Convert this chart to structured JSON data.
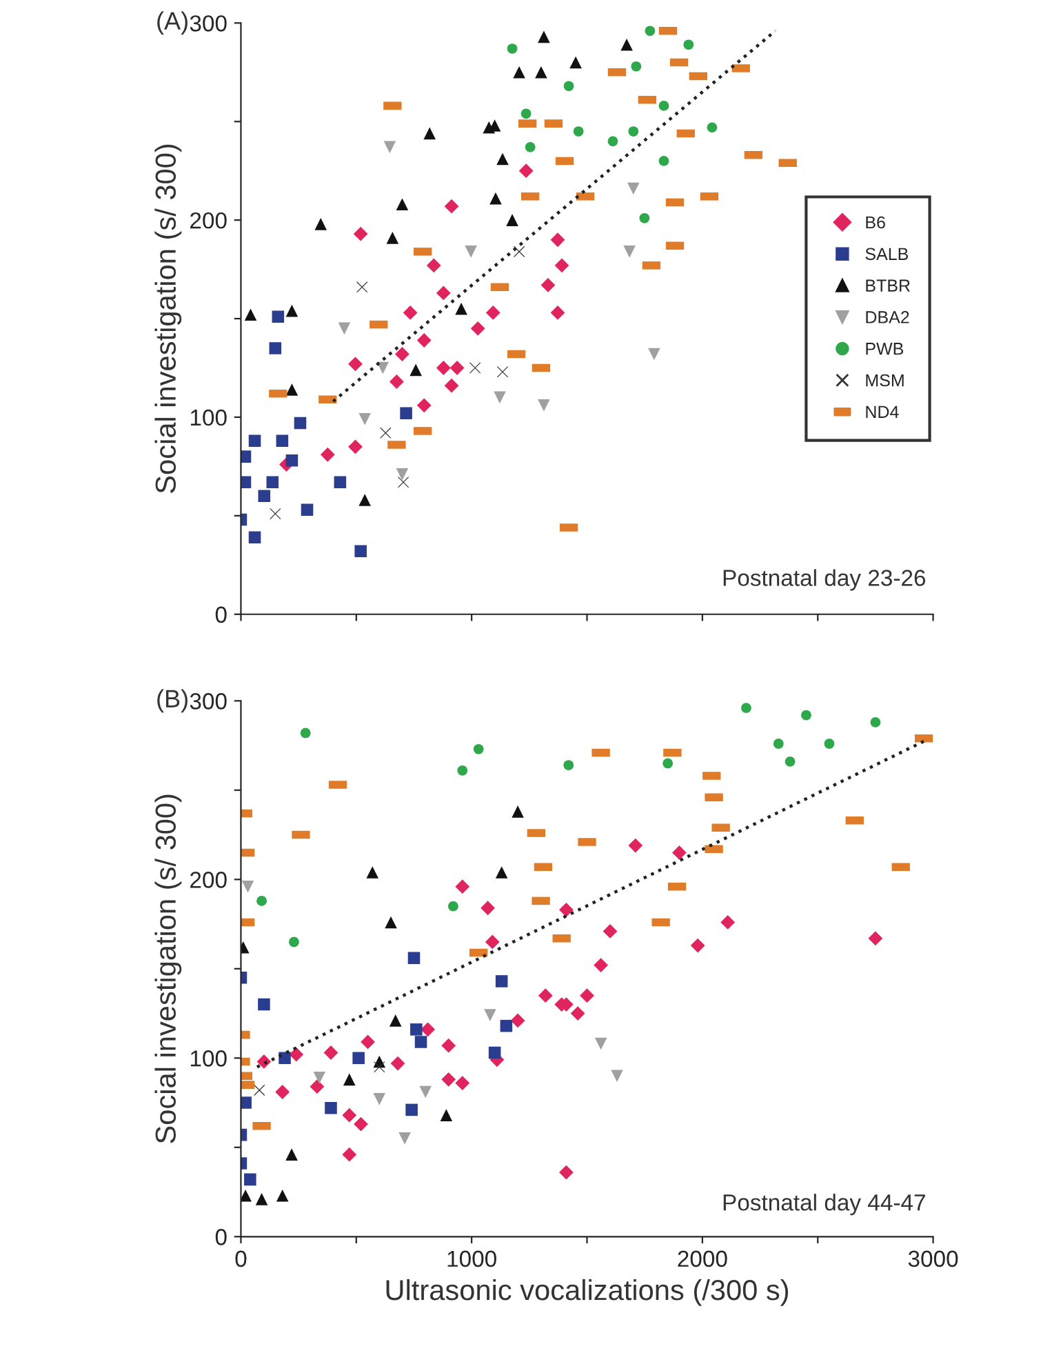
{
  "chart_data": [
    {
      "type": "scatter",
      "ylabel": "Social investigation (s/ 300)",
      "annotations": [
        "(A)",
        "Postnatal day 23-26"
      ],
      "xlim": [
        0,
        3000
      ],
      "ylim": [
        0,
        300
      ],
      "xticks": [
        0,
        {
          "value": 500,
          "label": null
        },
        1000,
        {
          "value": 1500,
          "label": null
        },
        2000,
        {
          "value": 2500,
          "label": null
        },
        3000
      ],
      "yticks": [
        0,
        {
          "value": 50,
          "label": null
        },
        100,
        {
          "value": 150,
          "label": null
        },
        200,
        {
          "value": 250,
          "label": null
        },
        300
      ],
      "tick_labels": "y",
      "grid": false,
      "legend": "right",
      "series": [
        {
          "name": "B6",
          "color": "#e0245e",
          "marker": "diamond",
          "x": [
            197,
            376,
            496,
            496,
            519,
            675,
            699,
            734,
            794,
            794,
            836,
            878,
            878,
            913,
            913,
            937,
            1027,
            1093,
            1236,
            1331,
            1373,
            1391,
            1373
          ],
          "values": [
            76,
            81,
            85,
            127,
            193,
            118,
            132,
            153,
            106,
            139,
            177,
            163,
            125,
            207,
            116,
            125,
            145,
            153,
            225,
            167,
            190,
            177,
            153
          ]
        },
        {
          "name": "SALB",
          "color": "#2b3d8f",
          "marker": "square",
          "x": [
            161,
            149,
            60,
            179,
            257,
            18,
            137,
            287,
            430,
            0,
            60,
            519,
            716,
            221,
            18,
            101
          ],
          "values": [
            151,
            135,
            88,
            88,
            97,
            67,
            67,
            53,
            67,
            48,
            39,
            32,
            102,
            78,
            80,
            60
          ]
        },
        {
          "name": "BTBR",
          "color": "#111111",
          "marker": "triangle",
          "x": [
            42,
            221,
            221,
            346,
            699,
            657,
            818,
            1075,
            1100,
            1134,
            1104,
            1176,
            955,
            758,
            537,
            1206,
            1301,
            1313,
            1451,
            1672
          ],
          "values": [
            152,
            154,
            114,
            198,
            208,
            191,
            244,
            247,
            248,
            231,
            211,
            200,
            155,
            124,
            58,
            275,
            275,
            293,
            280,
            289
          ]
        },
        {
          "name": "DBA2",
          "color": "#a0a0a0",
          "marker": "triangle_down",
          "x": [
            645,
            448,
            537,
            699,
            997,
            1122,
            1313,
            1701,
            1684,
            1791,
            615
          ],
          "values": [
            237,
            145,
            99,
            71,
            184,
            110,
            106,
            216,
            184,
            132,
            125
          ]
        },
        {
          "name": "PWB",
          "color": "#2ea84a",
          "marker": "circle",
          "x": [
            1773,
            1940,
            1713,
            1421,
            1833,
            1701,
            1612,
            1833,
            2042,
            1749,
            1176,
            1236,
            1254,
            1463
          ],
          "values": [
            296,
            289,
            278,
            268,
            258,
            245,
            240,
            230,
            247,
            201,
            287,
            254,
            237,
            245
          ]
        },
        {
          "name": "MSM",
          "color": "#333333",
          "marker": "cross",
          "x": [
            525,
            627,
            704,
            1134,
            1015,
            149,
            1206
          ],
          "values": [
            166,
            92,
            67,
            123,
            125,
            51,
            184
          ]
        },
        {
          "name": "ND4",
          "color": "#e07b2a",
          "marker": "rectangle",
          "x": [
            657,
            788,
            597,
            161,
            376,
            788,
            675,
            1122,
            1194,
            1301,
            1421,
            1242,
            1355,
            1254,
            1851,
            1630,
            1899,
            1982,
            2167,
            1761,
            1928,
            2221,
            2370,
            1881,
            2030,
            1881,
            1779,
            1403,
            1493
          ],
          "values": [
            258,
            184,
            147,
            112,
            109,
            93,
            86,
            166,
            132,
            125,
            44,
            249,
            249,
            212,
            296,
            275,
            280,
            273,
            277,
            261,
            244,
            233,
            229,
            209,
            212,
            187,
            177,
            230,
            212
          ]
        },
        {
          "type": "line",
          "color": "#222222",
          "line_style": "dotted",
          "x": [
            400,
            2316
          ],
          "values": [
            108,
            296
          ]
        }
      ]
    },
    {
      "type": "scatter",
      "xlabel": "Ultrasonic vocalizations (/300 s)",
      "ylabel": "Social investigation (s/ 300)",
      "annotations": [
        "(B)",
        "Postnatal day 44-47"
      ],
      "xlim": [
        0,
        3000
      ],
      "ylim": [
        0,
        300
      ],
      "xticks": [
        0,
        {
          "value": 500,
          "label": null
        },
        1000,
        {
          "value": 1500,
          "label": null
        },
        2000,
        {
          "value": 2500,
          "label": null
        },
        3000
      ],
      "yticks": [
        0,
        {
          "value": 50,
          "label": null
        },
        100,
        {
          "value": 150,
          "label": null
        },
        200,
        {
          "value": 250,
          "label": null
        },
        300
      ],
      "grid": false,
      "legend": false,
      "series": [
        {
          "color": "#e0245e",
          "marker": "diamond",
          "x": [
            960,
            1070,
            1090,
            1410,
            1320,
            1410,
            1460,
            1200,
            1110,
            900,
            810,
            550,
            390,
            240,
            100,
            180,
            330,
            470,
            520,
            680,
            900,
            960,
            470,
            1410,
            1710,
            1900,
            1600,
            1560,
            1500,
            1390,
            2110,
            1980,
            2750
          ],
          "values": [
            196,
            184,
            165,
            183,
            135,
            130,
            125,
            121,
            99,
            107,
            116,
            109,
            103,
            102,
            98,
            81,
            84,
            68,
            63,
            97,
            88,
            86,
            46,
            36,
            219,
            215,
            171,
            152,
            135,
            130,
            176,
            163,
            167
          ]
        },
        {
          "color": "#2b3d8f",
          "marker": "square",
          "x": [
            750,
            1130,
            1150,
            1100,
            760,
            780,
            510,
            190,
            390,
            740,
            100,
            0,
            0,
            40,
            0,
            20
          ],
          "values": [
            156,
            143,
            118,
            103,
            116,
            109,
            100,
            100,
            72,
            71,
            130,
            145,
            57,
            32,
            41,
            75
          ]
        },
        {
          "color": "#111111",
          "marker": "triangle",
          "x": [
            1200,
            1130,
            570,
            650,
            670,
            470,
            890,
            220,
            180,
            90,
            20,
            10,
            600
          ],
          "values": [
            238,
            204,
            204,
            176,
            121,
            88,
            68,
            46,
            23,
            21,
            23,
            162,
            98
          ]
        },
        {
          "color": "#a0a0a0",
          "marker": "triangle_down",
          "x": [
            30,
            1080,
            800,
            710,
            600,
            340,
            1560,
            1630
          ],
          "values": [
            196,
            124,
            81,
            55,
            77,
            89,
            108,
            90
          ]
        },
        {
          "color": "#2ea84a",
          "marker": "circle",
          "x": [
            280,
            1030,
            960,
            1420,
            90,
            230,
            920,
            2190,
            2330,
            2450,
            2750,
            1850,
            2380,
            2550
          ],
          "values": [
            282,
            273,
            261,
            264,
            188,
            165,
            185,
            296,
            276,
            292,
            288,
            265,
            266,
            276
          ]
        },
        {
          "color": "#333333",
          "marker": "cross",
          "x": [
            600,
            80
          ],
          "values": [
            95,
            82
          ]
        },
        {
          "color": "#e07b2a",
          "marker": "rectangle",
          "x": [
            420,
            260,
            10,
            20,
            20,
            1030,
            1280,
            1310,
            1300,
            1390,
            0,
            10,
            20,
            90,
            0,
            1560,
            1870,
            2040,
            2050,
            2080,
            2050,
            1890,
            1820,
            1500,
            2660,
            2860,
            2960
          ],
          "values": [
            253,
            225,
            237,
            215,
            176,
            159,
            226,
            207,
            188,
            167,
            113,
            90,
            85,
            62,
            98,
            271,
            271,
            258,
            246,
            229,
            217,
            196,
            176,
            221,
            233,
            207,
            279
          ]
        },
        {
          "type": "line",
          "color": "#222222",
          "line_style": "dotted",
          "x": [
            70,
            2970
          ],
          "values": [
            95,
            278
          ]
        }
      ]
    }
  ]
}
